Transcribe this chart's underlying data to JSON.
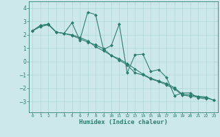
{
  "xlabel": "Humidex (Indice chaleur)",
  "x_values": [
    0,
    1,
    2,
    3,
    4,
    5,
    6,
    7,
    8,
    9,
    10,
    11,
    12,
    13,
    14,
    15,
    16,
    17,
    18,
    19,
    20,
    21,
    22,
    23
  ],
  "line1_x": [
    0,
    1,
    2,
    3,
    4,
    5,
    6,
    7,
    8,
    9,
    10,
    11,
    12,
    13,
    14,
    15,
    16,
    17,
    18,
    19,
    20,
    21,
    22
  ],
  "line1_y": [
    2.3,
    2.7,
    2.8,
    2.2,
    2.1,
    2.9,
    1.6,
    3.7,
    3.5,
    0.9,
    1.2,
    2.8,
    -0.85,
    0.5,
    0.55,
    -0.75,
    -0.6,
    -1.2,
    -2.55,
    -2.35,
    -2.35,
    -2.7,
    -2.8
  ],
  "line2_x": [
    0,
    1,
    2,
    3,
    4,
    5,
    6,
    7,
    8,
    9,
    10,
    11,
    12,
    13,
    14,
    15,
    16,
    17,
    18,
    19,
    20,
    21,
    22,
    23
  ],
  "line2_y": [
    2.3,
    2.7,
    2.8,
    2.2,
    2.1,
    2.0,
    1.8,
    1.55,
    1.1,
    0.8,
    0.45,
    0.1,
    -0.25,
    -0.85,
    -1.0,
    -1.3,
    -1.5,
    -1.75,
    -2.05,
    -2.5,
    -2.6,
    -2.65,
    -2.7,
    -2.9
  ],
  "line3_x": [
    0,
    1,
    2,
    3,
    4,
    5,
    6,
    7,
    8,
    9,
    10,
    11,
    12,
    13,
    14,
    15,
    16,
    17,
    18,
    19,
    20,
    21,
    22,
    23
  ],
  "line3_y": [
    2.3,
    2.6,
    2.75,
    2.2,
    2.1,
    1.95,
    1.7,
    1.45,
    1.25,
    0.95,
    0.45,
    0.2,
    -0.15,
    -0.55,
    -0.95,
    -1.25,
    -1.45,
    -1.65,
    -1.95,
    -2.45,
    -2.5,
    -2.6,
    -2.65,
    -2.9
  ],
  "ylim": [
    -3.8,
    4.5
  ],
  "yticks": [
    -3,
    -2,
    -1,
    0,
    1,
    2,
    3,
    4
  ],
  "xlim": [
    -0.5,
    23.5
  ],
  "line_color": "#2d7d6e",
  "bg_color": "#cce8e8",
  "grid_color": "#afd4d4",
  "marker": "D",
  "marker_size": 2,
  "line_width": 0.8
}
